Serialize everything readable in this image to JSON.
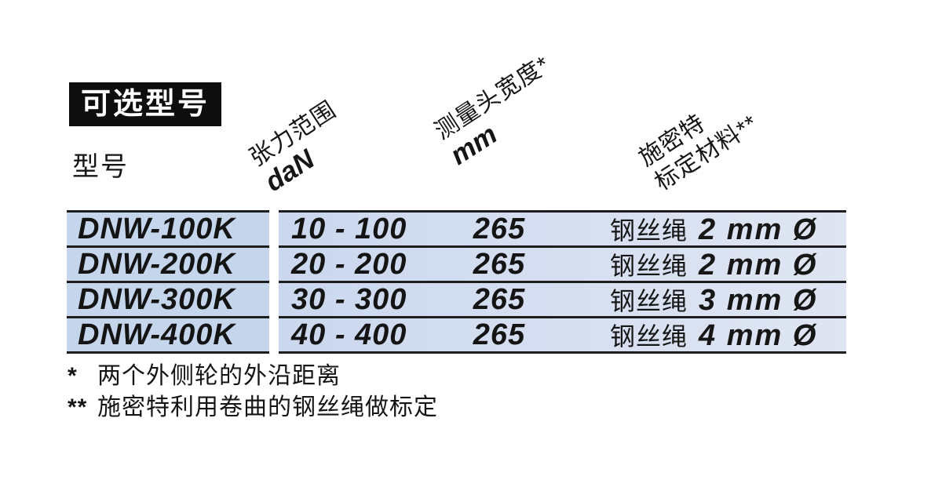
{
  "section_title": "可选型号",
  "model_label": "型号",
  "columns": [
    {
      "line1": "张力范围",
      "line2": "daN"
    },
    {
      "line1": "测量头宽度*",
      "line2": "mm"
    },
    {
      "line1": "施密特",
      "line2": "标定材料**"
    }
  ],
  "rows": [
    {
      "model": "DNW-100K",
      "range": "10 - 100",
      "head_width": "265",
      "material_prefix": "钢丝绳",
      "material_size": "2 mm Ø"
    },
    {
      "model": "DNW-200K",
      "range": "20 - 200",
      "head_width": "265",
      "material_prefix": "钢丝绳",
      "material_size": "2 mm Ø"
    },
    {
      "model": "DNW-300K",
      "range": "30 - 300",
      "head_width": "265",
      "material_prefix": "钢丝绳",
      "material_size": "3 mm Ø"
    },
    {
      "model": "DNW-400K",
      "range": "40 - 400",
      "head_width": "265",
      "material_prefix": "钢丝绳",
      "material_size": "4 mm Ø"
    }
  ],
  "footnotes": [
    {
      "marker": "*",
      "text": "两个外侧轮的外沿距离"
    },
    {
      "marker": "**",
      "text": "施密特利用卷曲的钢丝绳做标定"
    }
  ],
  "colors": {
    "title_bg": "#0e0e0e",
    "title_fg": "#ffffff",
    "row_left_bg": "#c5d6ec",
    "row_right_bg_start": "#cad7ee",
    "row_right_bg_end": "#dfe5f2",
    "table_border": "#1d1d1d",
    "text": "#161616"
  }
}
